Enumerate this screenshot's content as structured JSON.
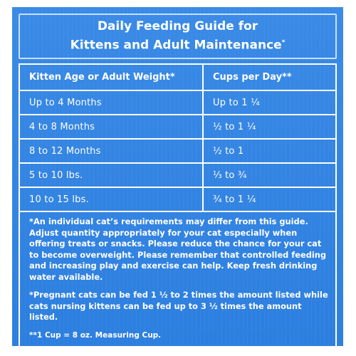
{
  "title": {
    "line1": "Daily Feeding Guide for",
    "line2": "Kittens and Adult Maintenance",
    "line2_mark": "*"
  },
  "table": {
    "headers": [
      "Kitten Age or Adult Weight*",
      "Cups per Day**"
    ],
    "rows": [
      [
        "Up to 4 Months",
        "Up to 1 ¼"
      ],
      [
        "4 to 8 Months",
        "½ to 1 ¼"
      ],
      [
        "8 to 12 Months",
        "½ to 1"
      ],
      [
        "5 to 10 lbs.",
        "⅓ to ¾"
      ],
      [
        "10 to 15 lbs.",
        "¾ to 1 ¼"
      ]
    ]
  },
  "notes": {
    "note1": "*An individual cat’s requirements may differ from this guide. Adjust quantity appropriately for your cat especially when offering treats or snacks. Please reduce the chance for your cat to become overweight. Please remember that controlled feeding and increasing play and exercise can help. Keep fresh drinking water available.",
    "note2": "*Pregnant cats can be fed 1 ½ to 2 times the amount listed while cats nursing kittens can be fed up to 3 ½ times the amount listed.",
    "note3": "**1 Cup = 8 oz. Measuring Cup."
  },
  "colors": {
    "panel_blue": "#2f80e0",
    "text": "#ffffff",
    "title_border": "#c6e0ff"
  }
}
